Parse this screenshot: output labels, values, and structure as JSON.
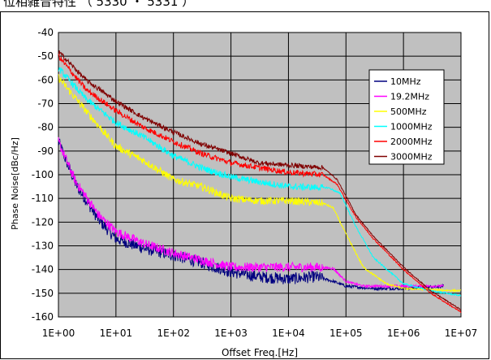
{
  "header": {
    "title_fragment": "位相雑音特性  （ 5330 ・ 5331 ）"
  },
  "colors": {
    "plot_bg": "#c0c0c0",
    "grid": "#000000",
    "s10": "#00007f",
    "s19": "#ff00ff",
    "s500": "#ffff00",
    "s1000": "#00ffff",
    "s2000": "#ff0000",
    "s3000": "#800000"
  },
  "chart_data": {
    "type": "line",
    "title": "",
    "xlabel": "Offset Freq.[Hz]",
    "ylabel": "Phase Noise[dBc/Hz]",
    "x_scale": "log",
    "xlim": [
      1,
      10000000
    ],
    "ylim": [
      -160,
      -40
    ],
    "grid": true,
    "legend_position": "top-right",
    "x_ticks": [
      "1E+00",
      "1E+01",
      "1E+02",
      "1E+03",
      "1E+04",
      "1E+05",
      "1E+06",
      "1E+07"
    ],
    "y_ticks": [
      "-40",
      "-50",
      "-60",
      "-70",
      "-80",
      "-90",
      "-100",
      "-110",
      "-120",
      "-130",
      "-140",
      "-150",
      "-160"
    ],
    "series": [
      {
        "name": "10MHz",
        "color": "#00007f",
        "noise": 2.5,
        "points": [
          [
            1,
            -86
          ],
          [
            2,
            -104
          ],
          [
            5,
            -119
          ],
          [
            10,
            -127
          ],
          [
            30,
            -131
          ],
          [
            100,
            -134
          ],
          [
            300,
            -137
          ],
          [
            1000,
            -141
          ],
          [
            3000,
            -143
          ],
          [
            10000,
            -144
          ],
          [
            30000,
            -143
          ],
          [
            60000,
            -145
          ],
          [
            100000,
            -147
          ],
          [
            300000,
            -148
          ],
          [
            1000000,
            -148
          ],
          [
            5000000,
            -147
          ]
        ]
      },
      {
        "name": "19.2MHz",
        "color": "#ff00ff",
        "noise": 2.0,
        "points": [
          [
            1,
            -86
          ],
          [
            2,
            -103
          ],
          [
            5,
            -117
          ],
          [
            10,
            -124
          ],
          [
            30,
            -129
          ],
          [
            100,
            -133
          ],
          [
            300,
            -136
          ],
          [
            1000,
            -139
          ],
          [
            3000,
            -139
          ],
          [
            10000,
            -139
          ],
          [
            30000,
            -139
          ],
          [
            60000,
            -139.5
          ],
          [
            100000,
            -145
          ],
          [
            200000,
            -147
          ],
          [
            1000000,
            -147
          ],
          [
            5000000,
            -147
          ]
        ]
      },
      {
        "name": "500MHz",
        "color": "#ffff00",
        "noise": 1.6,
        "points": [
          [
            1,
            -59
          ],
          [
            3,
            -73
          ],
          [
            10,
            -88
          ],
          [
            30,
            -94
          ],
          [
            100,
            -102
          ],
          [
            300,
            -105
          ],
          [
            1000,
            -110
          ],
          [
            3000,
            -111
          ],
          [
            10000,
            -111
          ],
          [
            40000,
            -112
          ],
          [
            60000,
            -114
          ],
          [
            100000,
            -125
          ],
          [
            200000,
            -139
          ],
          [
            500000,
            -146
          ],
          [
            1000000,
            -148
          ],
          [
            10000000,
            -149
          ]
        ]
      },
      {
        "name": "1000MHz",
        "color": "#00ffff",
        "noise": 1.4,
        "points": [
          [
            1,
            -55
          ],
          [
            3,
            -68
          ],
          [
            10,
            -78
          ],
          [
            30,
            -84
          ],
          [
            100,
            -92
          ],
          [
            300,
            -97
          ],
          [
            1000,
            -101
          ],
          [
            3000,
            -103
          ],
          [
            10000,
            -105
          ],
          [
            50000,
            -105.5
          ],
          [
            80000,
            -108
          ],
          [
            150000,
            -122
          ],
          [
            300000,
            -135
          ],
          [
            1000000,
            -146
          ],
          [
            3000000,
            -149
          ],
          [
            10000000,
            -151
          ]
        ]
      },
      {
        "name": "2000MHz",
        "color": "#ff0000",
        "noise": 1.2,
        "points": [
          [
            1,
            -50
          ],
          [
            3,
            -64
          ],
          [
            10,
            -73
          ],
          [
            30,
            -80
          ],
          [
            100,
            -86
          ],
          [
            300,
            -91
          ],
          [
            1000,
            -95
          ],
          [
            3000,
            -97
          ],
          [
            10000,
            -99
          ],
          [
            40000,
            -100
          ],
          [
            70000,
            -104
          ],
          [
            150000,
            -118
          ],
          [
            300000,
            -127
          ],
          [
            1000000,
            -140
          ],
          [
            3000000,
            -150
          ],
          [
            10000000,
            -158
          ]
        ]
      },
      {
        "name": "3000MHz",
        "color": "#800000",
        "noise": 1.0,
        "points": [
          [
            1,
            -48
          ],
          [
            3,
            -60
          ],
          [
            10,
            -69
          ],
          [
            30,
            -76
          ],
          [
            100,
            -82
          ],
          [
            300,
            -87
          ],
          [
            1000,
            -91
          ],
          [
            3000,
            -95
          ],
          [
            10000,
            -96
          ],
          [
            40000,
            -97
          ],
          [
            70000,
            -102
          ],
          [
            150000,
            -117
          ],
          [
            300000,
            -126
          ],
          [
            1000000,
            -139
          ],
          [
            3000000,
            -149
          ],
          [
            10000000,
            -157
          ]
        ]
      }
    ]
  }
}
